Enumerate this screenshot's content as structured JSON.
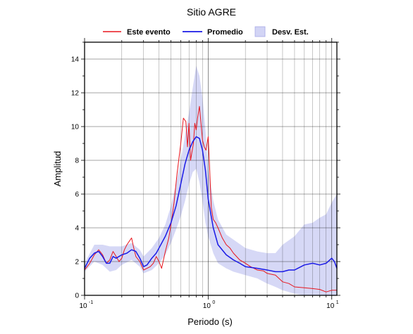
{
  "chart_data": {
    "type": "line",
    "title": "Sitio AGRE",
    "xlabel": "Periodo (s)",
    "ylabel": "Amplitud",
    "xscale": "log",
    "xlim": [
      0.1,
      11
    ],
    "ylim": [
      0,
      15
    ],
    "x_ticks": [
      {
        "base": "10",
        "exp": "-1",
        "value": 0.1
      },
      {
        "base": "10",
        "exp": "0",
        "value": 1
      },
      {
        "base": "10",
        "exp": "1",
        "value": 10
      }
    ],
    "y_ticks": [
      0,
      2,
      4,
      6,
      8,
      10,
      12,
      14
    ],
    "grid": true,
    "legend_position": "top",
    "colors": {
      "este_evento": "#e8161d",
      "promedio": "#1a1ae6",
      "desv_fill": "#d2d4f5",
      "desv_edge": "#a7a9e6"
    },
    "legend": [
      {
        "key": "este_evento",
        "label": "Este evento"
      },
      {
        "key": "promedio",
        "label": "Promedio"
      },
      {
        "key": "desv",
        "label": "Desv. Est."
      }
    ],
    "series": [
      {
        "name": "Este evento",
        "key": "este_evento",
        "x": [
          0.1,
          0.11,
          0.12,
          0.13,
          0.14,
          0.15,
          0.16,
          0.17,
          0.18,
          0.19,
          0.2,
          0.21,
          0.22,
          0.23,
          0.24,
          0.25,
          0.26,
          0.28,
          0.3,
          0.32,
          0.34,
          0.36,
          0.38,
          0.4,
          0.42,
          0.45,
          0.48,
          0.5,
          0.53,
          0.56,
          0.6,
          0.63,
          0.66,
          0.68,
          0.7,
          0.72,
          0.74,
          0.76,
          0.78,
          0.8,
          0.82,
          0.85,
          0.88,
          0.9,
          0.93,
          0.96,
          1.0,
          1.03,
          1.06,
          1.1,
          1.15,
          1.2,
          1.3,
          1.4,
          1.5,
          1.6,
          1.8,
          2.0,
          2.2,
          2.5,
          2.8,
          3.0,
          3.5,
          4.0,
          4.5,
          5.0,
          6.0,
          7.0,
          8.0,
          9.0,
          10.0,
          11.0
        ],
        "y": [
          1.5,
          1.9,
          2.4,
          2.7,
          2.4,
          1.9,
          2.1,
          2.6,
          2.3,
          2.0,
          2.2,
          2.7,
          3.0,
          3.2,
          3.4,
          2.8,
          2.3,
          2.0,
          1.5,
          1.6,
          1.7,
          1.9,
          2.3,
          2.0,
          1.6,
          2.6,
          3.4,
          4.2,
          5.5,
          7.2,
          9.0,
          10.5,
          10.3,
          8.8,
          10.2,
          8.0,
          8.5,
          9.0,
          10.2,
          9.8,
          10.5,
          11.2,
          10.0,
          9.2,
          8.8,
          8.6,
          9.4,
          7.4,
          5.2,
          4.5,
          4.3,
          4.0,
          3.4,
          3.0,
          2.8,
          2.5,
          2.1,
          1.9,
          1.7,
          1.5,
          1.45,
          1.3,
          1.2,
          0.8,
          0.7,
          0.5,
          0.45,
          0.4,
          0.35,
          0.2,
          0.3,
          0.3
        ]
      },
      {
        "name": "Promedio",
        "key": "promedio",
        "x": [
          0.1,
          0.11,
          0.12,
          0.13,
          0.14,
          0.15,
          0.16,
          0.17,
          0.18,
          0.2,
          0.22,
          0.24,
          0.26,
          0.28,
          0.3,
          0.32,
          0.35,
          0.38,
          0.4,
          0.45,
          0.5,
          0.55,
          0.6,
          0.65,
          0.7,
          0.75,
          0.8,
          0.85,
          0.9,
          0.95,
          1.0,
          1.1,
          1.2,
          1.4,
          1.6,
          1.8,
          2.0,
          2.5,
          3.0,
          3.5,
          4.0,
          4.5,
          5.0,
          6.0,
          7.0,
          8.0,
          9.0,
          10.0,
          10.5,
          11.0
        ],
        "y": [
          1.6,
          2.2,
          2.5,
          2.6,
          2.3,
          1.9,
          1.9,
          2.3,
          2.2,
          2.4,
          2.5,
          2.7,
          2.6,
          2.2,
          1.7,
          1.8,
          2.2,
          2.5,
          2.8,
          3.5,
          4.3,
          5.3,
          6.6,
          7.8,
          8.6,
          9.1,
          9.4,
          9.3,
          8.6,
          7.4,
          5.7,
          4.0,
          3.0,
          2.4,
          2.1,
          1.9,
          1.7,
          1.6,
          1.5,
          1.4,
          1.4,
          1.5,
          1.5,
          1.8,
          1.9,
          1.8,
          1.9,
          2.2,
          2.0,
          1.6
        ]
      }
    ],
    "band": {
      "name": "Desv. Est.",
      "key": "desv",
      "x": [
        0.1,
        0.12,
        0.14,
        0.16,
        0.18,
        0.2,
        0.24,
        0.28,
        0.3,
        0.35,
        0.4,
        0.45,
        0.5,
        0.55,
        0.6,
        0.65,
        0.7,
        0.75,
        0.8,
        0.85,
        0.9,
        0.95,
        1.0,
        1.1,
        1.2,
        1.4,
        1.6,
        2.0,
        2.5,
        3.0,
        3.5,
        4.0,
        5.0,
        6.0,
        7.0,
        8.0,
        9.0,
        10.0,
        11.0
      ],
      "upper": [
        1.9,
        3.0,
        3.0,
        2.9,
        2.9,
        2.9,
        3.1,
        2.7,
        2.3,
        2.8,
        3.4,
        4.2,
        5.3,
        6.6,
        8.0,
        9.5,
        10.8,
        12.3,
        13.6,
        13.0,
        11.7,
        9.8,
        7.5,
        5.6,
        4.5,
        3.6,
        3.3,
        2.8,
        2.6,
        2.5,
        2.5,
        3.0,
        3.5,
        4.2,
        4.3,
        4.6,
        4.8,
        5.5,
        6.0
      ],
      "lower": [
        1.4,
        2.0,
        1.8,
        1.4,
        1.5,
        1.8,
        2.1,
        1.7,
        1.3,
        1.5,
        1.9,
        2.4,
        3.1,
        3.9,
        4.7,
        5.6,
        6.6,
        7.3,
        7.5,
        6.7,
        5.6,
        4.3,
        3.5,
        2.5,
        1.9,
        1.6,
        1.4,
        1.2,
        1.0,
        0.7,
        0.5,
        0.3,
        0.1,
        0.0,
        0.0,
        0.0,
        0.0,
        0.0,
        0.0
      ]
    }
  }
}
